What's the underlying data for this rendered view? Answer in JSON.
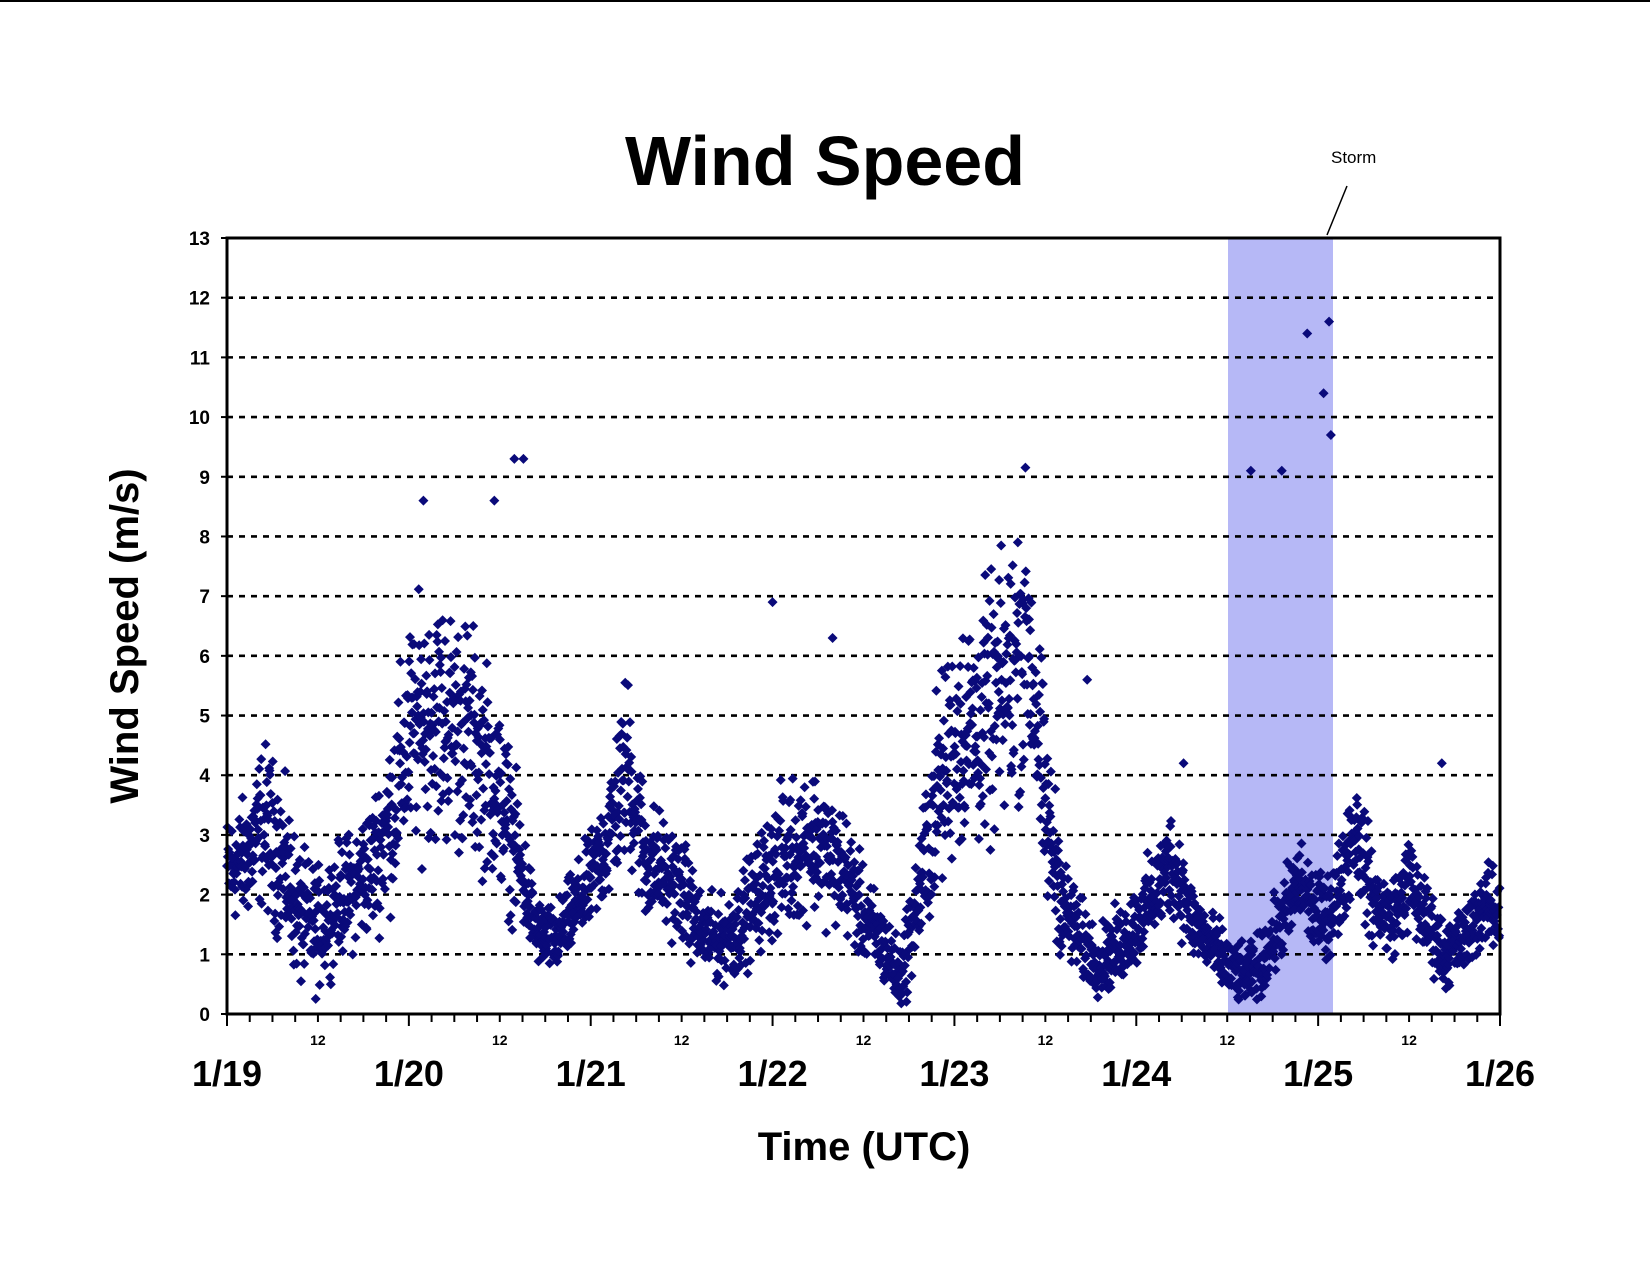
{
  "chart_data": {
    "type": "scatter",
    "title": "Wind Speed",
    "xlabel": "Time (UTC)",
    "ylabel": "Wind Speed (m/s)",
    "ylim": [
      0,
      13
    ],
    "yticks": [
      0,
      1,
      2,
      3,
      4,
      5,
      6,
      7,
      8,
      9,
      10,
      11,
      12,
      13
    ],
    "xlim_days": [
      "1/19",
      "1/26"
    ],
    "x_major_labels": [
      "1/19",
      "1/20",
      "1/21",
      "1/22",
      "1/23",
      "1/24",
      "1/25",
      "1/26"
    ],
    "x_minor_label": "12",
    "grid": "horizontal dashed",
    "marker": "diamond",
    "colors": {
      "marker": "#0a0a7a",
      "storm_band": "#b6b8f6",
      "grid": "#000000"
    },
    "annotation": {
      "text": "Storm",
      "x_range": [
        "1/24 12:00",
        "1/25 06:00"
      ]
    },
    "series": [
      {
        "x_days_since_1_19": [
          0.0,
          0.1,
          0.2,
          0.3,
          0.4,
          0.5,
          0.6,
          0.7,
          0.8,
          0.9,
          1.0,
          1.1,
          1.2,
          1.3,
          1.4,
          1.5,
          1.6,
          1.7,
          1.8,
          1.9,
          2.0,
          2.1,
          2.2,
          2.3,
          2.4,
          2.5,
          2.6,
          2.7,
          2.8,
          2.9,
          3.0,
          3.1,
          3.2,
          3.3,
          3.4,
          3.5,
          3.6,
          3.7,
          3.8,
          3.9,
          4.0,
          4.1,
          4.2,
          4.3,
          4.4,
          4.5,
          4.6,
          4.7,
          4.8,
          4.9,
          5.0,
          5.1,
          5.2,
          5.3,
          5.4,
          5.5,
          5.6,
          5.7,
          5.8,
          5.9,
          6.0,
          6.1,
          6.2,
          6.3,
          6.4,
          6.5,
          6.6,
          6.7,
          6.8,
          6.9,
          7.0
        ],
        "typical_speed": [
          2.4,
          2.6,
          3.2,
          2.6,
          1.6,
          1.4,
          1.9,
          2.1,
          2.5,
          3.3,
          4.6,
          5.0,
          4.9,
          4.7,
          4.3,
          3.6,
          2.6,
          1.4,
          1.2,
          1.7,
          2.2,
          3.0,
          4.2,
          2.6,
          2.4,
          2.1,
          1.4,
          1.2,
          1.4,
          1.9,
          2.4,
          2.7,
          3.0,
          2.7,
          2.4,
          1.6,
          1.2,
          0.6,
          1.9,
          3.6,
          4.6,
          4.8,
          5.0,
          5.6,
          6.5,
          3.4,
          1.8,
          1.2,
          0.9,
          1.1,
          1.5,
          2.0,
          2.6,
          1.6,
          1.2,
          0.8,
          0.6,
          0.9,
          1.6,
          2.2,
          1.6,
          1.9,
          3.2,
          1.9,
          1.6,
          2.2,
          1.5,
          1.0,
          1.2,
          1.8,
          1.7
        ],
        "spread": [
          0.8,
          0.9,
          1.2,
          1.2,
          1.0,
          0.9,
          0.8,
          0.9,
          1.0,
          1.3,
          1.7,
          1.8,
          1.8,
          1.8,
          1.6,
          1.4,
          1.0,
          0.5,
          0.5,
          0.6,
          0.7,
          1.0,
          1.4,
          1.0,
          0.8,
          0.8,
          0.6,
          0.6,
          0.7,
          0.8,
          1.0,
          1.1,
          1.1,
          1.0,
          0.9,
          0.7,
          0.6,
          0.5,
          0.9,
          1.5,
          1.7,
          1.8,
          1.9,
          2.0,
          2.2,
          1.4,
          0.8,
          0.6,
          0.5,
          0.6,
          0.6,
          0.7,
          0.8,
          0.6,
          0.5,
          0.5,
          0.4,
          0.5,
          0.6,
          0.7,
          0.6,
          0.7,
          0.9,
          0.7,
          0.6,
          0.7,
          0.6,
          0.5,
          0.5,
          0.6,
          0.6
        ],
        "peaks": [
          {
            "x": 1.08,
            "y": 8.6
          },
          {
            "x": 1.47,
            "y": 8.6
          },
          {
            "x": 1.58,
            "y": 9.3
          },
          {
            "x": 1.63,
            "y": 9.3
          },
          {
            "x": 3.0,
            "y": 6.9
          },
          {
            "x": 3.33,
            "y": 6.3
          },
          {
            "x": 4.73,
            "y": 5.6
          },
          {
            "x": 5.26,
            "y": 4.2
          },
          {
            "x": 5.94,
            "y": 11.4
          },
          {
            "x": 6.06,
            "y": 11.6
          },
          {
            "x": 6.03,
            "y": 10.4
          },
          {
            "x": 6.07,
            "y": 9.7
          },
          {
            "x": 5.63,
            "y": 9.1
          },
          {
            "x": 5.8,
            "y": 9.1
          },
          {
            "x": 6.68,
            "y": 4.2
          }
        ]
      }
    ]
  }
}
